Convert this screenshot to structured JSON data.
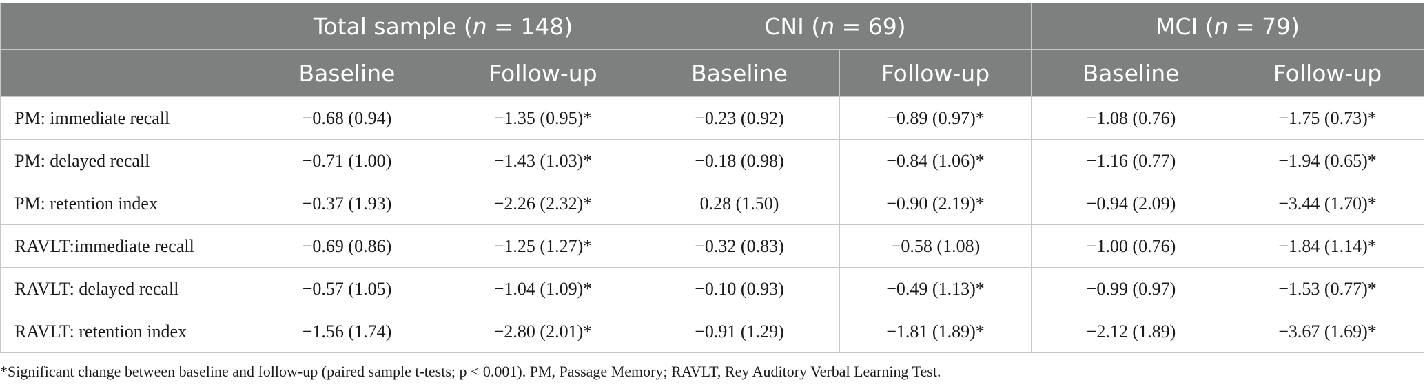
{
  "table": {
    "groups": [
      {
        "label": "Total sample",
        "n": "148"
      },
      {
        "label": "CNI",
        "n": "69"
      },
      {
        "label": "MCI",
        "n": "79"
      }
    ],
    "subheaders": [
      "Baseline",
      "Follow-up",
      "Baseline",
      "Follow-up",
      "Baseline",
      "Follow-up"
    ],
    "rows": [
      {
        "label": "PM: immediate recall",
        "cells": [
          "−0.68 (0.94)",
          "−1.35 (0.95)*",
          "−0.23 (0.92)",
          "−0.89 (0.97)*",
          "−1.08 (0.76)",
          "−1.75 (0.73)*"
        ]
      },
      {
        "label": "PM: delayed recall",
        "cells": [
          "−0.71 (1.00)",
          "−1.43 (1.03)*",
          "−0.18 (0.98)",
          "−0.84 (1.06)*",
          "−1.16 (0.77)",
          "−1.94 (0.65)*"
        ]
      },
      {
        "label": "PM: retention index",
        "cells": [
          "−0.37 (1.93)",
          "−2.26 (2.32)*",
          "0.28 (1.50)",
          "−0.90 (2.19)*",
          "−0.94 (2.09)",
          "−3.44 (1.70)*"
        ]
      },
      {
        "label": "RAVLT:immediate recall",
        "cells": [
          "−0.69 (0.86)",
          "−1.25 (1.27)*",
          "−0.32 (0.83)",
          "−0.58 (1.08)",
          "−1.00 (0.76)",
          "−1.84 (1.14)*"
        ]
      },
      {
        "label": "RAVLT: delayed recall",
        "cells": [
          "−0.57 (1.05)",
          "−1.04 (1.09)*",
          "−0.10 (0.93)",
          "−0.49 (1.13)*",
          "−0.99 (0.97)",
          "−1.53 (0.77)*"
        ]
      },
      {
        "label": "RAVLT: retention index",
        "cells": [
          "−1.56 (1.74)",
          "−2.80 (2.01)*",
          "−0.91 (1.29)",
          "−1.81 (1.89)*",
          "−2.12 (1.89)",
          "−3.67 (1.69)*"
        ]
      }
    ]
  },
  "footnote": "*Significant change between baseline and follow-up (paired sample t-tests; p < 0.001). PM, Passage Memory; RAVLT, Rey Auditory Verbal Learning Test.",
  "colors": {
    "header_bg": "#7e7f7f",
    "header_text": "#ffffff",
    "grid": "#c8c8c8"
  }
}
